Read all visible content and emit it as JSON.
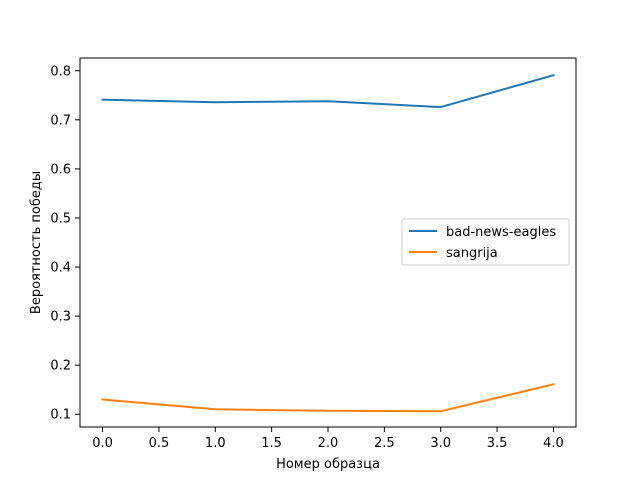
{
  "chart_data": {
    "type": "line",
    "title": "",
    "xlabel": "Номер образца",
    "ylabel": "Вероятность победы",
    "xlim": [
      -0.2,
      4.2
    ],
    "ylim": [
      0.074,
      0.826
    ],
    "xticks": [
      0.0,
      0.5,
      1.0,
      1.5,
      2.0,
      2.5,
      3.0,
      3.5,
      4.0
    ],
    "xtick_labels": [
      "0.0",
      "0.5",
      "1.0",
      "1.5",
      "2.0",
      "2.5",
      "3.0",
      "3.5",
      "4.0"
    ],
    "yticks": [
      0.1,
      0.2,
      0.3,
      0.4,
      0.5,
      0.6,
      0.7,
      0.8
    ],
    "ytick_labels": [
      "0.1",
      "0.2",
      "0.3",
      "0.4",
      "0.5",
      "0.6",
      "0.7",
      "0.8"
    ],
    "grid": false,
    "legend_position": "center-right",
    "x": [
      0,
      1,
      2,
      3,
      4
    ],
    "series": [
      {
        "name": "bad-news-eagles",
        "color": "#1f77b4",
        "values": [
          0.741,
          0.736,
          0.738,
          0.726,
          0.791
        ]
      },
      {
        "name": "sangrija",
        "color": "#ff7f0e",
        "values": [
          0.13,
          0.11,
          0.107,
          0.106,
          0.161
        ]
      }
    ]
  }
}
